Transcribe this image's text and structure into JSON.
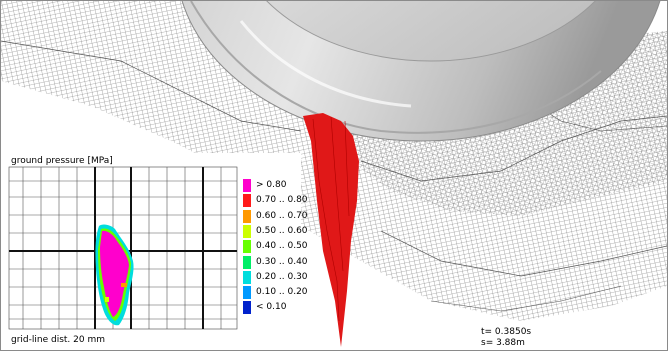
{
  "panel": {
    "title": "ground pressure [MPa]",
    "footer": "grid-line dist. 20 mm"
  },
  "legend": [
    {
      "label": "> 0.80",
      "color": "#ff00cc"
    },
    {
      "label": "0.70 .. 0.80",
      "color": "#ff1a1a"
    },
    {
      "label": "0.60 .. 0.70",
      "color": "#ff9900"
    },
    {
      "label": "0.50 .. 0.60",
      "color": "#ccff00"
    },
    {
      "label": "0.40 .. 0.50",
      "color": "#66ff00"
    },
    {
      "label": "0.30 .. 0.40",
      "color": "#00ee66"
    },
    {
      "label": "0.20 .. 0.30",
      "color": "#00dddd"
    },
    {
      "label": "0.10 .. 0.20",
      "color": "#0099ff"
    },
    {
      "label": "< 0.10",
      "color": "#0022cc"
    }
  ],
  "readout": {
    "t": "t=   0.3850s",
    "s": "s=     3.88m"
  },
  "colors": {
    "tire": "#d4d4d4",
    "mesh": "#6a6a6a",
    "pressure_3d": "#e01818"
  }
}
